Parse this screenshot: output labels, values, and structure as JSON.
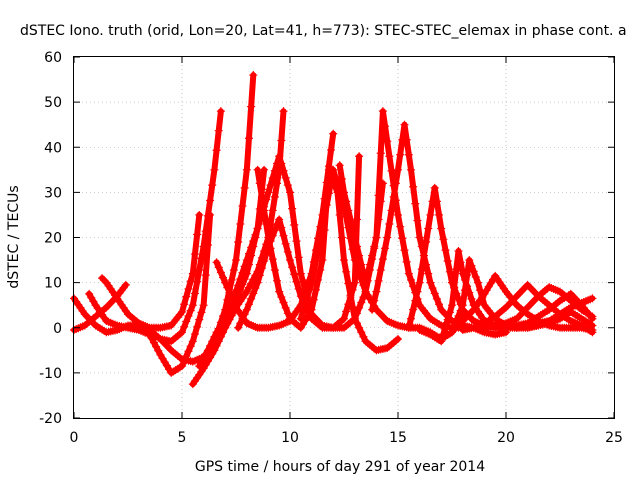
{
  "chart_data": {
    "type": "line",
    "title": "dSTEC Iono. truth (orid, Lon=20, Lat=41, h=773): STEC-STEC_elemax in phase cont. a",
    "xlabel": "GPS time / hours of day 291 of year 2014",
    "ylabel": "dSTEC  / TECUs",
    "xlim": [
      0,
      25
    ],
    "ylim": [
      -20,
      60
    ],
    "xticks": [
      0,
      5,
      10,
      15,
      20,
      25
    ],
    "yticks": [
      -20,
      -10,
      0,
      10,
      20,
      30,
      40,
      50,
      60
    ],
    "grid": true,
    "legend": "none",
    "color": "#ff0000",
    "marker": "+",
    "series": [
      {
        "x": [
          0.0,
          0.5,
          1.0,
          1.5,
          2.0,
          2.5,
          3.0,
          3.5,
          4.0,
          4.5,
          5.0,
          5.5,
          6.0,
          6.5,
          6.8
        ],
        "y": [
          6.5,
          3.0,
          0.5,
          -1.0,
          -0.5,
          0.5,
          0.5,
          -0.5,
          -2.5,
          -3.0,
          -1.0,
          5.0,
          18.0,
          35.0,
          48.0
        ]
      },
      {
        "x": [
          0.0,
          0.5,
          1.0,
          1.5,
          2.0,
          2.4
        ],
        "y": [
          -0.5,
          0.5,
          2.5,
          4.5,
          7.0,
          9.5
        ]
      },
      {
        "x": [
          0.7,
          1.0,
          1.5,
          2.0,
          2.5,
          3.0,
          3.5,
          4.0,
          4.5,
          5.0,
          5.5,
          6.0,
          6.3
        ],
        "y": [
          7.5,
          5.0,
          1.5,
          0.5,
          0.0,
          -0.5,
          -1.5,
          -6.0,
          -10.0,
          -8.5,
          -3.0,
          5.0,
          25.0
        ]
      },
      {
        "x": [
          1.3,
          1.5,
          2.0,
          2.5,
          3.0,
          3.5,
          4.0,
          4.5,
          5.0,
          5.5,
          5.8
        ],
        "y": [
          11.0,
          10.0,
          6.5,
          3.0,
          1.0,
          0.0,
          0.0,
          0.5,
          3.5,
          12.0,
          25.0
        ]
      },
      {
        "x": [
          3.3,
          3.5,
          4.0,
          4.5,
          5.0,
          5.5,
          6.0,
          6.5,
          7.0,
          7.5,
          8.0,
          8.3
        ],
        "y": [
          -0.5,
          -1.0,
          -2.5,
          -5.0,
          -7.0,
          -7.5,
          -6.5,
          -3.0,
          4.0,
          15.0,
          35.0,
          56.0
        ]
      },
      {
        "x": [
          5.5,
          6.0,
          6.5,
          7.0,
          7.5,
          8.0,
          8.5,
          9.0,
          9.5,
          9.7
        ],
        "y": [
          -12.5,
          -9.0,
          -5.0,
          0.0,
          4.5,
          8.0,
          12.5,
          20.0,
          35.0,
          48.0
        ]
      },
      {
        "x": [
          5.8,
          6.2,
          6.6,
          7.0,
          7.5,
          8.0,
          8.5,
          8.8
        ],
        "y": [
          -8.5,
          -5.0,
          -1.0,
          2.0,
          6.0,
          12.0,
          22.0,
          35.0
        ]
      },
      {
        "x": [
          6.6,
          7.0,
          7.5,
          8.0,
          8.5,
          9.0,
          9.5,
          10.0,
          10.5,
          11.0,
          11.5,
          12.0
        ],
        "y": [
          14.5,
          10.0,
          4.5,
          1.0,
          0.0,
          0.0,
          0.5,
          1.5,
          5.0,
          12.0,
          25.0,
          43.0
        ]
      },
      {
        "x": [
          7.0,
          7.5,
          8.0,
          8.5,
          9.0,
          9.5,
          10.0,
          10.5,
          11.0,
          11.5,
          12.0,
          12.5,
          13.0,
          13.5,
          14.0,
          14.3
        ],
        "y": [
          2.5,
          8.0,
          15.0,
          22.0,
          30.0,
          38.0,
          30.0,
          12.0,
          3.0,
          0.5,
          0.0,
          0.0,
          2.0,
          8.0,
          20.0,
          32.0
        ]
      },
      {
        "x": [
          7.6,
          8.0,
          8.5,
          9.0,
          9.5,
          10.0,
          10.5,
          11.0,
          11.5,
          12.0,
          12.5,
          13.0,
          13.2
        ],
        "y": [
          0.0,
          4.0,
          10.0,
          18.0,
          24.0,
          15.0,
          7.0,
          2.0,
          0.0,
          0.0,
          2.0,
          10.0,
          38.0
        ]
      },
      {
        "x": [
          8.5,
          9.0,
          9.5,
          10.0,
          10.5,
          11.0,
          11.5,
          11.8,
          12.2,
          12.5,
          13.0,
          13.5,
          14.0,
          14.5,
          15.0
        ],
        "y": [
          35.0,
          20.0,
          8.0,
          2.0,
          0.0,
          4.0,
          15.0,
          35.0,
          30.0,
          15.0,
          2.0,
          -3.0,
          -5.0,
          -4.5,
          -2.5
        ]
      },
      {
        "x": [
          10.5,
          11.0,
          11.5,
          12.0,
          12.5,
          13.0,
          13.5,
          14.0,
          14.5,
          15.0,
          15.5,
          16.0,
          16.5,
          17.0,
          17.5,
          18.0
        ],
        "y": [
          2.0,
          10.0,
          22.0,
          35.0,
          27.0,
          15.0,
          8.0,
          4.0,
          1.5,
          0.5,
          0.0,
          0.0,
          -1.0,
          -2.5,
          -1.0,
          3.0
        ]
      },
      {
        "x": [
          12.3,
          12.5,
          13.0,
          13.5,
          14.0,
          14.3,
          14.6,
          15.0,
          15.5,
          16.0,
          16.5,
          17.0,
          17.5,
          18.0
        ],
        "y": [
          36.0,
          30.0,
          20.0,
          10.0,
          20.0,
          48.0,
          38.0,
          25.0,
          12.0,
          5.0,
          2.0,
          0.5,
          0.0,
          0.0
        ]
      },
      {
        "x": [
          13.8,
          14.0,
          14.5,
          15.0,
          15.3,
          15.6,
          16.0,
          16.5,
          17.0,
          17.5,
          18.0,
          18.5,
          19.0,
          19.5,
          20.0
        ],
        "y": [
          4.0,
          8.0,
          20.0,
          35.0,
          45.0,
          35.0,
          20.0,
          10.0,
          4.0,
          1.5,
          0.5,
          0.0,
          -1.0,
          -1.5,
          -1.0
        ]
      },
      {
        "x": [
          15.5,
          16.0,
          16.5,
          16.7,
          17.0,
          17.5,
          18.0,
          18.5,
          19.0,
          19.5,
          20.0
        ],
        "y": [
          0.0,
          10.0,
          25.0,
          31.0,
          22.0,
          10.0,
          4.0,
          1.5,
          0.5,
          0.0,
          0.0
        ]
      },
      {
        "x": [
          16.0,
          16.5,
          17.0,
          17.5,
          17.8,
          18.0,
          18.5,
          19.0,
          19.5,
          20.0,
          20.5,
          21.0,
          21.5,
          22.0
        ],
        "y": [
          -0.5,
          -1.5,
          -3.0,
          5.0,
          17.0,
          12.0,
          5.0,
          1.5,
          0.5,
          0.0,
          0.0,
          0.5,
          1.0,
          1.5
        ]
      },
      {
        "x": [
          16.5,
          17.0,
          17.5,
          18.0,
          18.3,
          18.7,
          19.0,
          19.5,
          20.0,
          20.5,
          21.0
        ],
        "y": [
          -1.5,
          -2.5,
          -1.0,
          5.0,
          15.0,
          10.0,
          5.0,
          2.0,
          0.5,
          0.0,
          0.5
        ]
      },
      {
        "x": [
          17.5,
          18.0,
          18.5,
          19.0,
          19.5,
          20.0,
          20.5,
          21.0,
          21.5,
          22.0,
          22.5,
          23.0,
          23.5,
          24.0
        ],
        "y": [
          0.0,
          1.5,
          4.0,
          7.5,
          11.5,
          8.0,
          5.0,
          3.0,
          1.5,
          0.5,
          0.0,
          0.0,
          0.0,
          -0.5
        ]
      },
      {
        "x": [
          18.0,
          18.5,
          19.0,
          19.5,
          20.0,
          20.5,
          21.0,
          21.5,
          22.0,
          22.5,
          23.0,
          23.5,
          24.0
        ],
        "y": [
          -0.5,
          0.0,
          1.0,
          2.5,
          4.5,
          7.0,
          9.5,
          7.0,
          5.0,
          3.0,
          1.5,
          0.5,
          -1.0
        ]
      },
      {
        "x": [
          19.0,
          19.5,
          20.0,
          20.5,
          21.0,
          21.5,
          22.0,
          22.5,
          23.0,
          23.5,
          24.0
        ],
        "y": [
          0.0,
          0.5,
          1.0,
          2.0,
          4.5,
          7.0,
          9.0,
          8.0,
          6.0,
          4.0,
          2.5
        ]
      },
      {
        "x": [
          20.0,
          20.5,
          21.0,
          21.5,
          22.0,
          22.5,
          23.0,
          23.5,
          24.0
        ],
        "y": [
          0.5,
          0.5,
          1.0,
          2.5,
          4.0,
          6.0,
          7.5,
          5.0,
          2.0
        ]
      },
      {
        "x": [
          20.5,
          21.0,
          21.5,
          22.0,
          22.5,
          23.0,
          23.5,
          24.0
        ],
        "y": [
          0.0,
          0.0,
          0.5,
          1.5,
          3.0,
          4.5,
          5.5,
          6.5
        ]
      },
      {
        "x": [
          21.0,
          21.5,
          22.0,
          22.5,
          23.0,
          23.5,
          24.0
        ],
        "y": [
          0.0,
          0.5,
          1.0,
          2.0,
          3.5,
          2.0,
          0.5
        ]
      }
    ]
  }
}
